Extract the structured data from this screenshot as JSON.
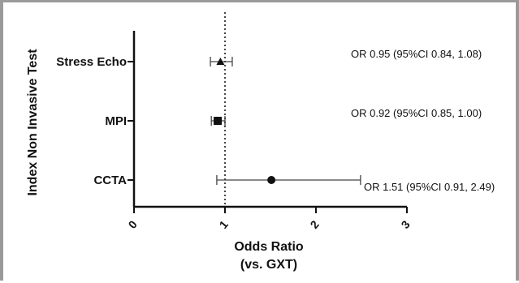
{
  "chart_data": {
    "type": "forest",
    "ylabel": "Index Non Invasive Test",
    "xlabel_line1": "Odds Ratio",
    "xlabel_line2": "(vs. GXT)",
    "xlim": [
      0,
      3
    ],
    "xticks": [
      "0",
      "1",
      "2",
      "3"
    ],
    "reference_line": 1,
    "categories": [
      "Stress Echo",
      "MPI",
      "CCTA"
    ],
    "points": [
      {
        "label": "Stress Echo",
        "or": 0.95,
        "ci_low": 0.84,
        "ci_high": 1.08,
        "marker": "triangle",
        "annotation": "OR 0.95 (95%CI 0.84, 1.08)"
      },
      {
        "label": "MPI",
        "or": 0.92,
        "ci_low": 0.85,
        "ci_high": 1.0,
        "marker": "square",
        "annotation": "OR 0.92 (95%CI 0.85, 1.00)"
      },
      {
        "label": "CCTA",
        "or": 1.51,
        "ci_low": 0.91,
        "ci_high": 2.49,
        "marker": "circle",
        "annotation": "OR 1.51 (95%CI 0.91, 2.49)"
      }
    ],
    "colors": {
      "mark": "#111111",
      "ci": "#444444",
      "frame": "#9a9a9a"
    }
  }
}
